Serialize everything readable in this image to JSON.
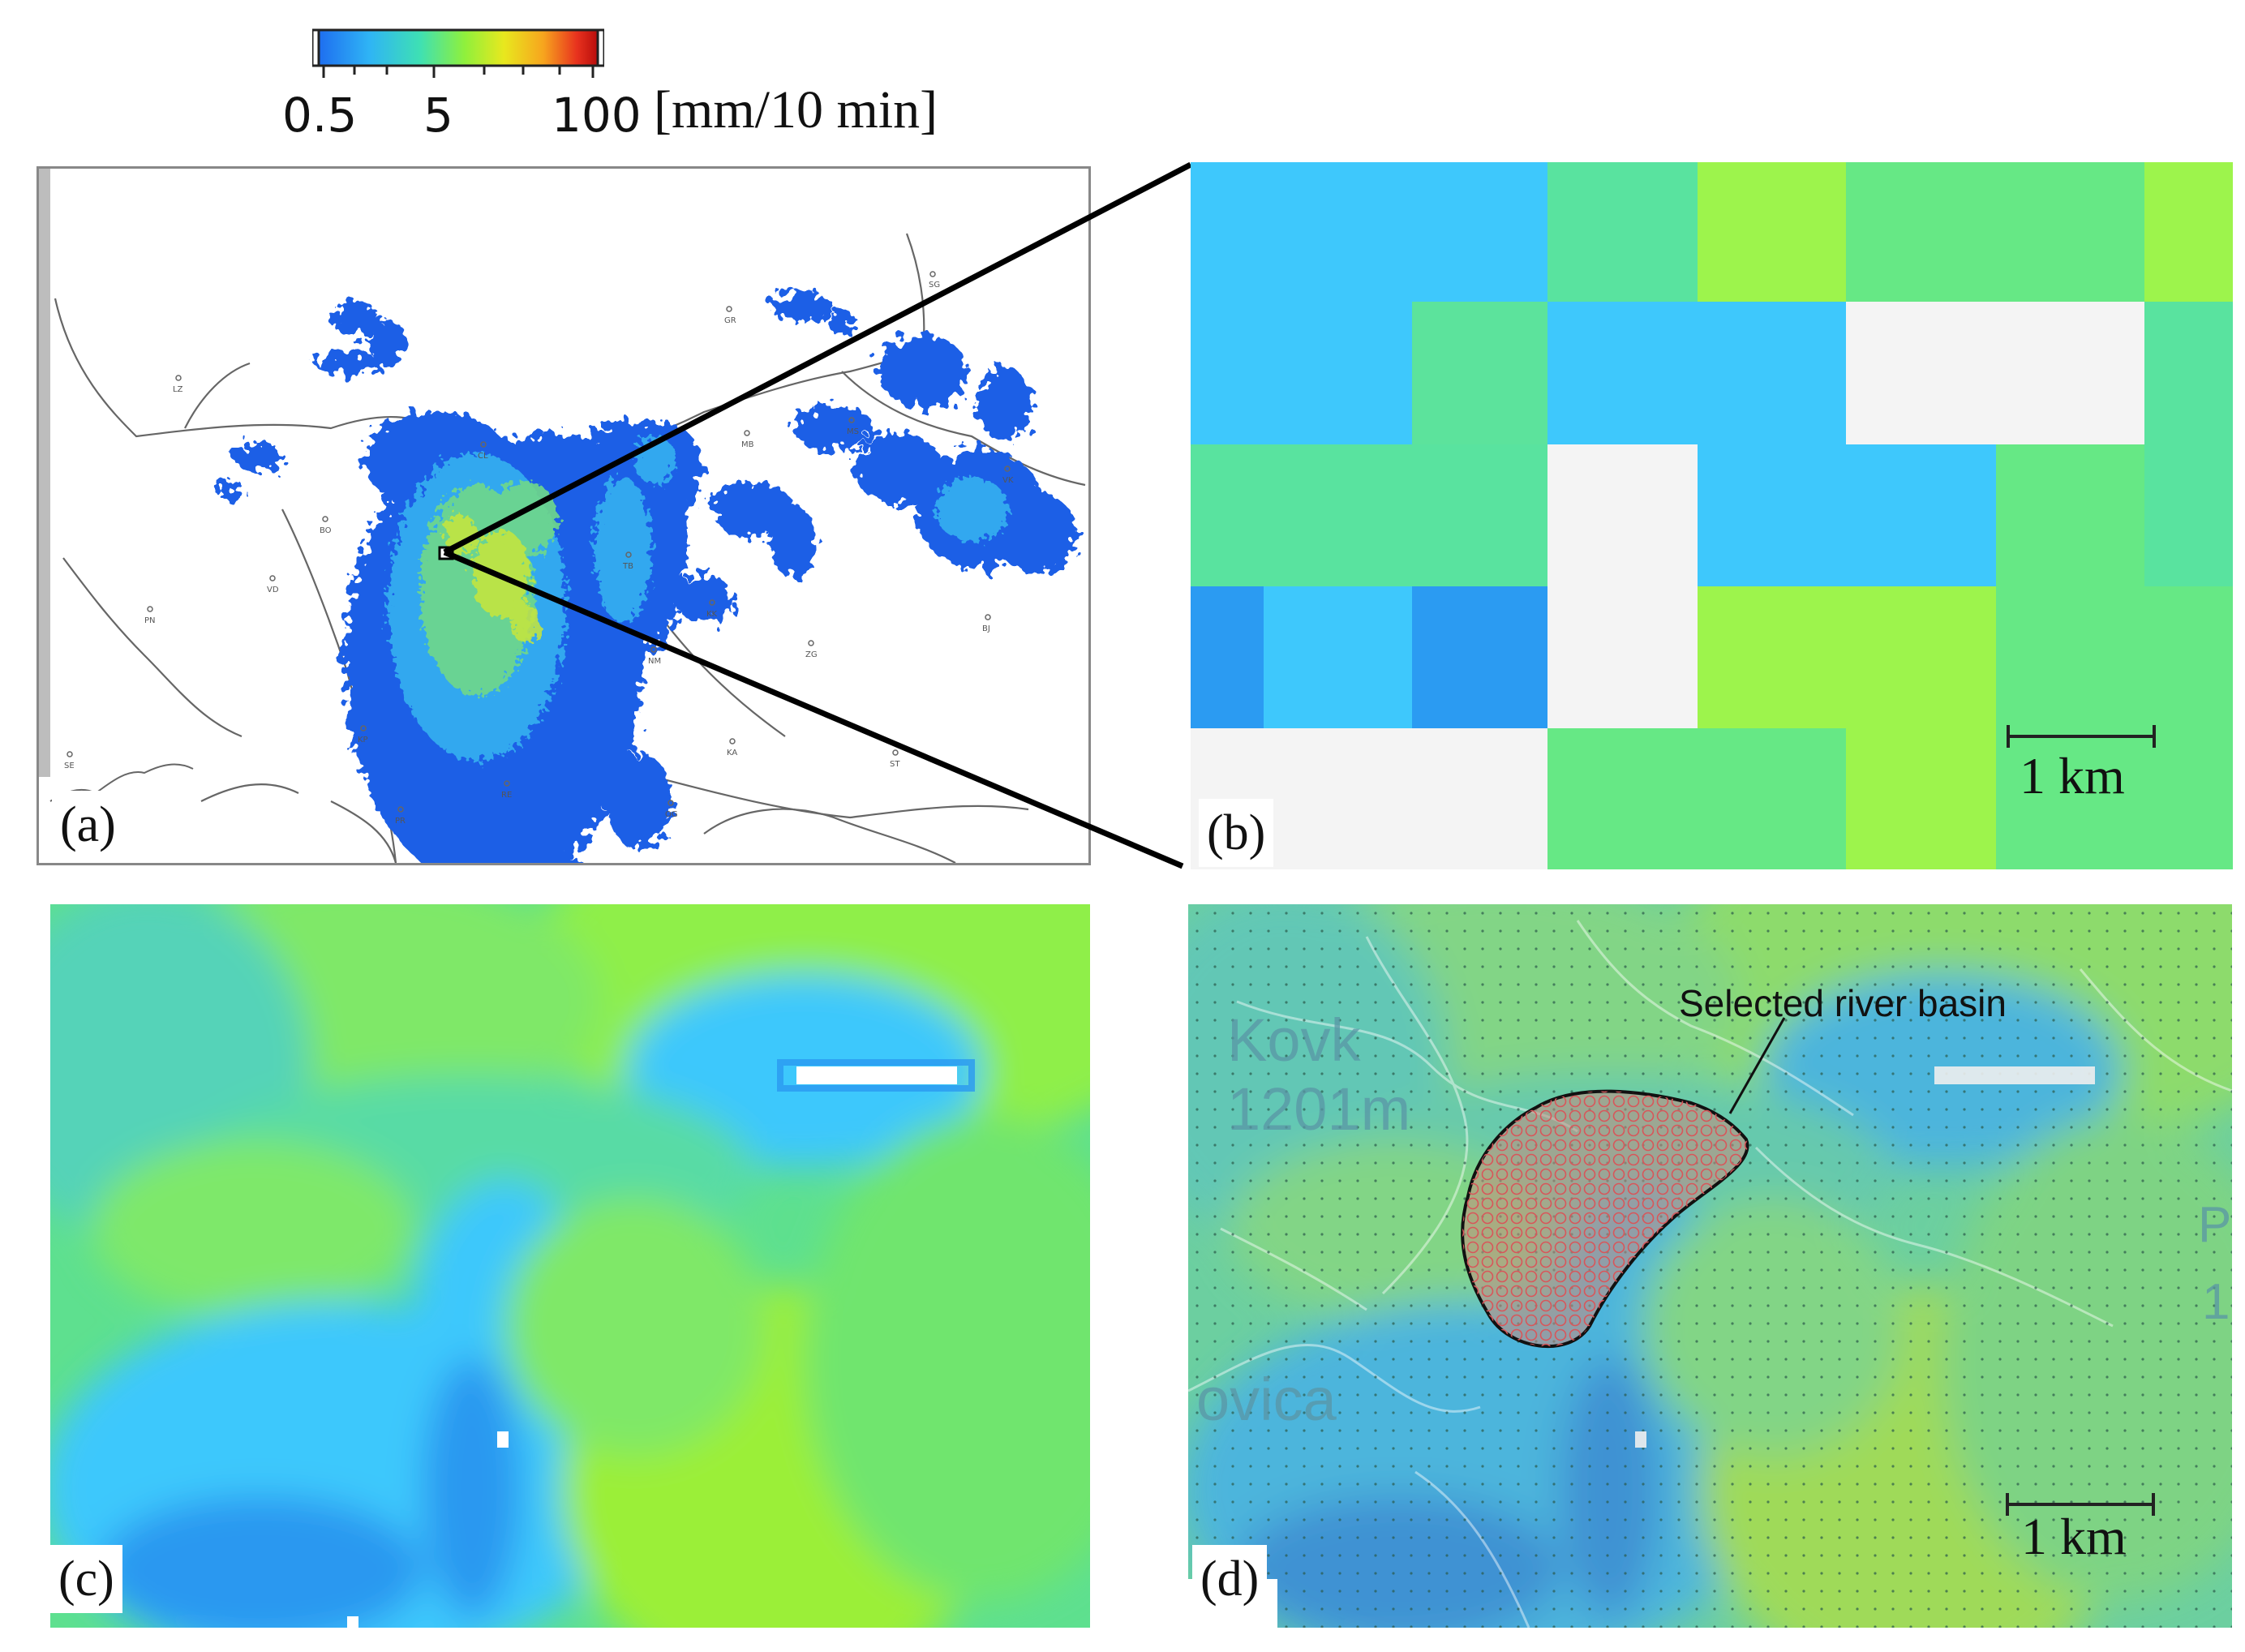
{
  "colorbar": {
    "ticks": [
      "0.5",
      "5",
      "100"
    ],
    "unit": "[mm/10 min]",
    "colors": [
      "#1e6ef0",
      "#2fb4f5",
      "#3ee0b4",
      "#8ff03c",
      "#e8e81e",
      "#f7a51e",
      "#e8321e",
      "#b40a0a"
    ]
  },
  "panel_a": {
    "label": "(a)",
    "stations": [
      "SG",
      "GR",
      "LZ",
      "MS",
      "MB",
      "CL",
      "VK",
      "BO",
      "TB",
      "VD",
      "PN",
      "KK",
      "BJ",
      "NM",
      "ZG",
      "KP",
      "KA",
      "PR",
      "RE",
      "OG",
      "ST",
      "SE"
    ]
  },
  "panel_b": {
    "label": "(b)",
    "scale": "1 km"
  },
  "panel_c": {
    "label": "(c)"
  },
  "panel_d": {
    "label": "(d)",
    "scale": "1 km",
    "annotation": "Selected river basin",
    "map_text": [
      "Kovk",
      "1201m",
      "ovica",
      "P",
      "1"
    ]
  }
}
